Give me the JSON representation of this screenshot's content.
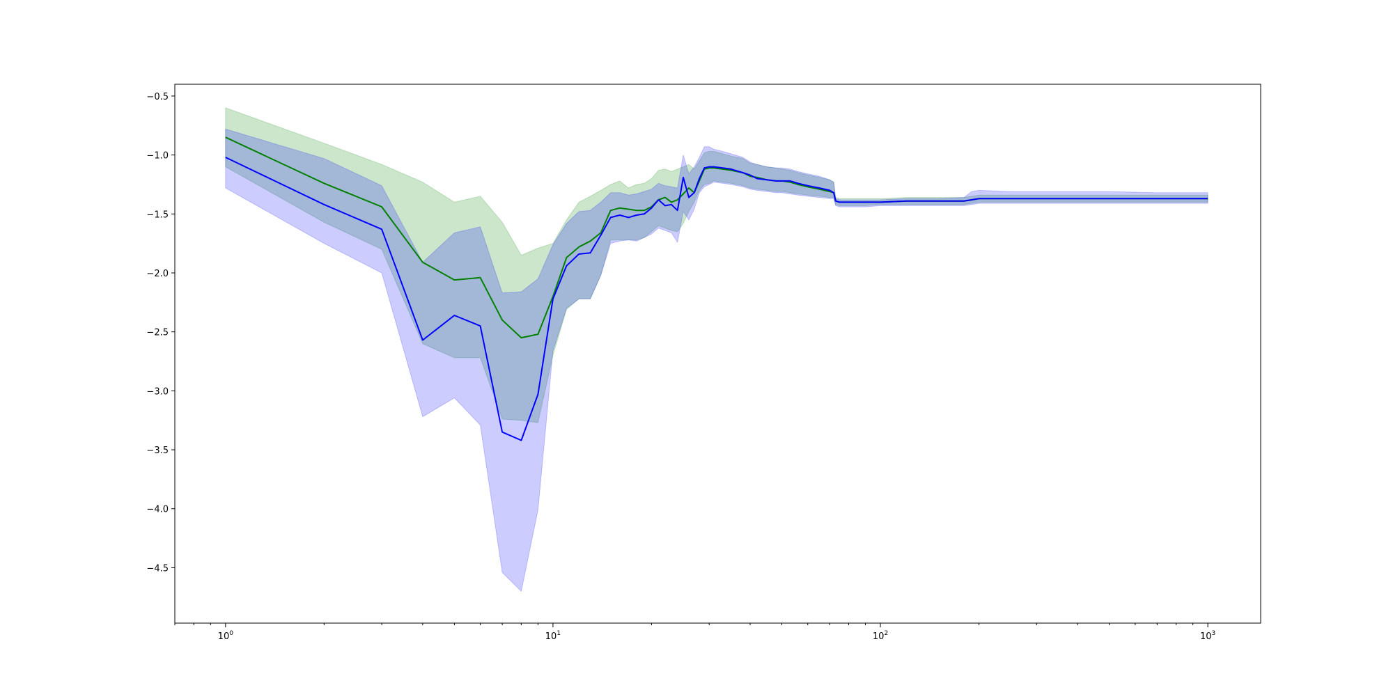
{
  "chart_data": {
    "type": "line",
    "title": "",
    "xlabel": "",
    "ylabel": "",
    "xscale": "log",
    "xlim": [
      0.7,
      1450
    ],
    "ylim": [
      -4.97,
      -0.4
    ],
    "grid": false,
    "legend": "none",
    "x_tick_labels": [
      {
        "value": 1,
        "base": "10",
        "exp": "0"
      },
      {
        "value": 10,
        "base": "10",
        "exp": "1"
      },
      {
        "value": 100,
        "base": "10",
        "exp": "2"
      },
      {
        "value": 1000,
        "base": "10",
        "exp": "3"
      }
    ],
    "y_ticks": [
      -0.5,
      -1.0,
      -1.5,
      -2.0,
      -2.5,
      -3.0,
      -3.5,
      -4.0,
      -4.5
    ],
    "y_tick_labels": [
      "−0.5",
      "−1.0",
      "−1.5",
      "−2.0",
      "−2.5",
      "−3.0",
      "−3.5",
      "−4.0",
      "−4.5"
    ],
    "series": [
      {
        "color": "#008000",
        "band_color": "#008000",
        "band_opacity": 0.2,
        "x": [
          1,
          2,
          3,
          4,
          5,
          6,
          7,
          8,
          9,
          10,
          11,
          12,
          13,
          14,
          15,
          16,
          17,
          18,
          19,
          20,
          21,
          22,
          23,
          24,
          25,
          26,
          27,
          28,
          29,
          30,
          31,
          33,
          35,
          38,
          40,
          42,
          45,
          48,
          50,
          53,
          56,
          60,
          65,
          70,
          72,
          73,
          75,
          80,
          90,
          100,
          120,
          150,
          180,
          190,
          200,
          250,
          300,
          400,
          500,
          700,
          1000
        ],
        "y": [
          -0.85,
          -1.24,
          -1.44,
          -1.91,
          -2.06,
          -2.04,
          -2.4,
          -2.55,
          -2.52,
          -2.2,
          -1.87,
          -1.78,
          -1.73,
          -1.66,
          -1.47,
          -1.45,
          -1.46,
          -1.47,
          -1.47,
          -1.44,
          -1.38,
          -1.36,
          -1.4,
          -1.38,
          -1.33,
          -1.28,
          -1.32,
          -1.22,
          -1.12,
          -1.11,
          -1.11,
          -1.12,
          -1.13,
          -1.15,
          -1.18,
          -1.19,
          -1.21,
          -1.22,
          -1.22,
          -1.23,
          -1.25,
          -1.27,
          -1.29,
          -1.31,
          -1.32,
          -1.39,
          -1.4,
          -1.4,
          -1.4,
          -1.4,
          -1.39,
          -1.39,
          -1.39,
          -1.38,
          -1.37,
          -1.37,
          -1.37,
          -1.37,
          -1.37,
          -1.37,
          -1.37
        ],
        "lower": [
          -1.1,
          -1.57,
          -1.8,
          -2.6,
          -2.72,
          -2.72,
          -3.24,
          -3.25,
          -3.27,
          -2.7,
          -2.31,
          -2.22,
          -2.22,
          -2.02,
          -1.72,
          -1.72,
          -1.72,
          -1.72,
          -1.7,
          -1.65,
          -1.6,
          -1.62,
          -1.64,
          -1.65,
          -1.58,
          -1.48,
          -1.4,
          -1.3,
          -1.25,
          -1.24,
          -1.22,
          -1.23,
          -1.24,
          -1.26,
          -1.28,
          -1.29,
          -1.3,
          -1.31,
          -1.31,
          -1.32,
          -1.33,
          -1.34,
          -1.35,
          -1.36,
          -1.36,
          -1.42,
          -1.43,
          -1.43,
          -1.43,
          -1.42,
          -1.42,
          -1.42,
          -1.42,
          -1.41,
          -1.4,
          -1.4,
          -1.4,
          -1.4,
          -1.4,
          -1.4,
          -1.4
        ],
        "upper": [
          -0.6,
          -0.9,
          -1.08,
          -1.23,
          -1.4,
          -1.35,
          -1.57,
          -1.85,
          -1.79,
          -1.75,
          -1.55,
          -1.4,
          -1.35,
          -1.3,
          -1.25,
          -1.22,
          -1.28,
          -1.25,
          -1.24,
          -1.2,
          -1.13,
          -1.12,
          -1.14,
          -1.12,
          -1.1,
          -1.08,
          -1.12,
          -1.05,
          -0.98,
          -0.97,
          -0.97,
          -0.99,
          -1.01,
          -1.03,
          -1.07,
          -1.08,
          -1.1,
          -1.11,
          -1.12,
          -1.13,
          -1.15,
          -1.17,
          -1.19,
          -1.21,
          -1.23,
          -1.36,
          -1.37,
          -1.37,
          -1.37,
          -1.37,
          -1.36,
          -1.36,
          -1.36,
          -1.35,
          -1.34,
          -1.34,
          -1.34,
          -1.34,
          -1.34,
          -1.34,
          -1.34
        ]
      },
      {
        "color": "#0000ff",
        "band_color": "#0000ff",
        "band_opacity": 0.2,
        "x": [
          1,
          2,
          3,
          4,
          5,
          6,
          7,
          8,
          9,
          10,
          11,
          12,
          13,
          14,
          15,
          16,
          17,
          18,
          19,
          20,
          21,
          22,
          23,
          24,
          25,
          26,
          27,
          28,
          29,
          30,
          31,
          33,
          35,
          38,
          40,
          42,
          45,
          48,
          50,
          53,
          56,
          60,
          65,
          70,
          72,
          73,
          75,
          80,
          90,
          100,
          120,
          150,
          180,
          190,
          200,
          250,
          300,
          400,
          500,
          700,
          1000
        ],
        "y": [
          -1.02,
          -1.42,
          -1.63,
          -2.57,
          -2.36,
          -2.45,
          -3.35,
          -3.42,
          -3.03,
          -2.22,
          -1.94,
          -1.84,
          -1.83,
          -1.68,
          -1.53,
          -1.51,
          -1.53,
          -1.51,
          -1.5,
          -1.45,
          -1.38,
          -1.43,
          -1.42,
          -1.47,
          -1.19,
          -1.36,
          -1.32,
          -1.2,
          -1.11,
          -1.1,
          -1.1,
          -1.11,
          -1.12,
          -1.15,
          -1.17,
          -1.2,
          -1.21,
          -1.22,
          -1.22,
          -1.22,
          -1.24,
          -1.26,
          -1.28,
          -1.3,
          -1.32,
          -1.39,
          -1.4,
          -1.4,
          -1.4,
          -1.4,
          -1.39,
          -1.39,
          -1.39,
          -1.38,
          -1.37,
          -1.37,
          -1.37,
          -1.37,
          -1.37,
          -1.37,
          -1.37
        ],
        "lower": [
          -1.28,
          -1.75,
          -2.0,
          -3.22,
          -3.06,
          -3.29,
          -4.54,
          -4.7,
          -4.01,
          -2.66,
          -2.3,
          -2.22,
          -2.22,
          -2.02,
          -1.75,
          -1.73,
          -1.72,
          -1.73,
          -1.7,
          -1.67,
          -1.62,
          -1.64,
          -1.66,
          -1.74,
          -1.48,
          -1.55,
          -1.46,
          -1.32,
          -1.27,
          -1.25,
          -1.23,
          -1.24,
          -1.25,
          -1.27,
          -1.29,
          -1.3,
          -1.31,
          -1.32,
          -1.32,
          -1.33,
          -1.34,
          -1.35,
          -1.36,
          -1.37,
          -1.37,
          -1.43,
          -1.44,
          -1.44,
          -1.44,
          -1.43,
          -1.43,
          -1.43,
          -1.43,
          -1.42,
          -1.41,
          -1.41,
          -1.41,
          -1.41,
          -1.41,
          -1.41,
          -1.41
        ],
        "upper": [
          -0.78,
          -1.03,
          -1.26,
          -1.91,
          -1.66,
          -1.61,
          -2.17,
          -2.16,
          -2.05,
          -1.76,
          -1.58,
          -1.48,
          -1.47,
          -1.4,
          -1.32,
          -1.32,
          -1.34,
          -1.33,
          -1.31,
          -1.29,
          -1.24,
          -1.26,
          -1.27,
          -1.28,
          -1.0,
          -1.16,
          -1.1,
          -1.02,
          -0.93,
          -0.93,
          -0.95,
          -0.97,
          -0.99,
          -1.02,
          -1.06,
          -1.08,
          -1.1,
          -1.11,
          -1.11,
          -1.12,
          -1.14,
          -1.16,
          -1.18,
          -1.21,
          -1.23,
          -1.37,
          -1.38,
          -1.38,
          -1.38,
          -1.38,
          -1.37,
          -1.37,
          -1.36,
          -1.31,
          -1.3,
          -1.31,
          -1.31,
          -1.31,
          -1.31,
          -1.32,
          -1.32
        ]
      }
    ]
  }
}
